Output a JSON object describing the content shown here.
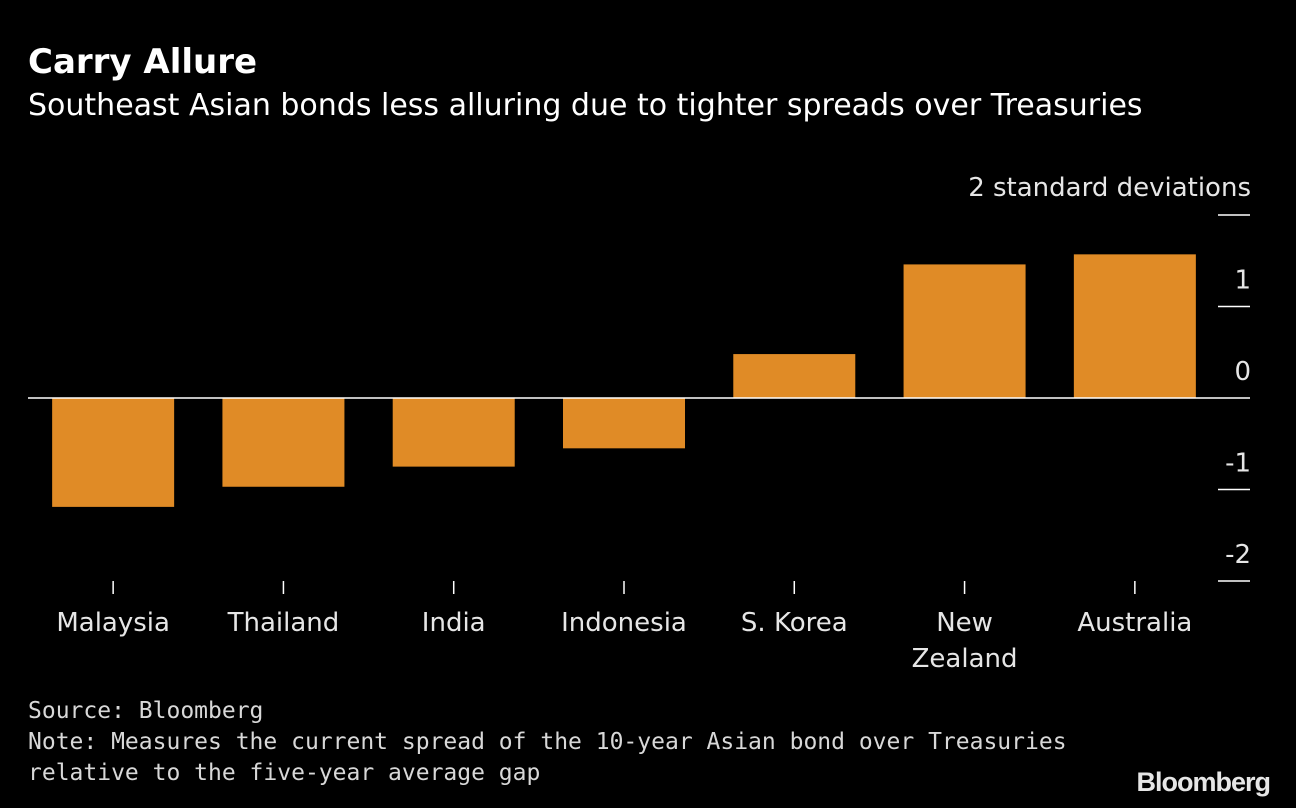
{
  "header": {
    "title": "Carry Allure",
    "subtitle": "Southeast Asian bonds less alluring due to tighter spreads over Treasuries"
  },
  "chart_data": {
    "type": "bar",
    "ylabel": "2 standard deviations",
    "categories": [
      "Malaysia",
      "Thailand",
      "India",
      "Indonesia",
      "S. Korea",
      "New Zealand",
      "Australia"
    ],
    "category_lines": [
      [
        "Malaysia"
      ],
      [
        "Thailand"
      ],
      [
        "India"
      ],
      [
        "Indonesia"
      ],
      [
        "S. Korea"
      ],
      [
        "New",
        "Zealand"
      ],
      [
        "Australia"
      ]
    ],
    "values": [
      -1.19,
      -0.97,
      -0.75,
      -0.55,
      0.48,
      1.46,
      1.57
    ],
    "ylim": [
      -2,
      2
    ],
    "yticks": [
      -2,
      -1,
      0,
      1,
      2
    ],
    "ytick_labels": [
      "-2",
      "-1",
      "0",
      "1",
      ""
    ],
    "axis_position": "right",
    "grid": false,
    "zero_line": true,
    "colors": {
      "bar": "#e08b26",
      "axis": "#ffffff",
      "tick_text": "#e6e6e6",
      "background": "#000000"
    }
  },
  "footer": {
    "source": "Source: Bloomberg",
    "note_line1": "Note: Measures the current spread of the 10-year Asian bond over Treasuries",
    "note_line2": "relative to the five-year average gap"
  },
  "brand": {
    "logo": "Bloomberg"
  }
}
